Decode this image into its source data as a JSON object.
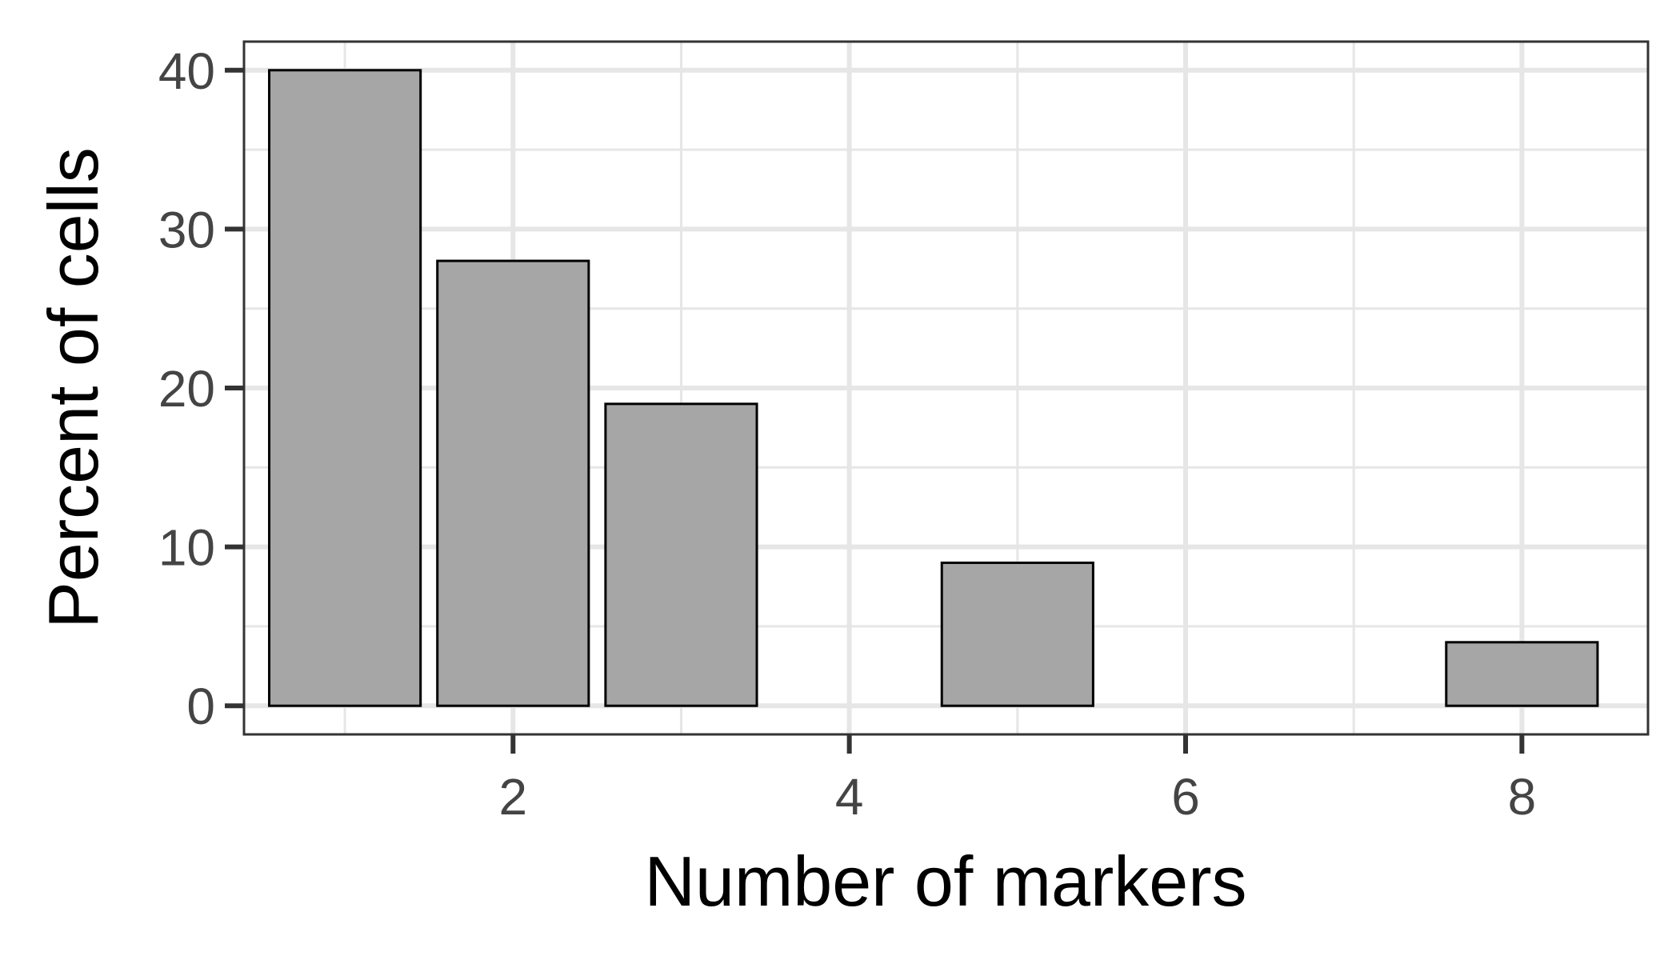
{
  "chart_data": {
    "type": "bar",
    "x": [
      1,
      2,
      3,
      5,
      8
    ],
    "values": [
      40,
      28,
      19,
      9,
      4
    ],
    "xlabel": "Number of markers",
    "ylabel": "Percent of cells",
    "xlim": [
      0.4,
      8.75
    ],
    "ylim": [
      -1.8,
      41.8
    ],
    "x_ticks": [
      2,
      4,
      6,
      8
    ],
    "x_minor_ticks": [
      1,
      3,
      5,
      7
    ],
    "y_ticks": [
      0,
      10,
      20,
      30,
      40
    ],
    "y_minor_ticks": [
      5,
      15,
      25,
      35
    ],
    "bar_width": 0.9,
    "bar_color": "#a6a6a6",
    "bar_outline": "#000000",
    "grid": true,
    "legend": "none"
  }
}
